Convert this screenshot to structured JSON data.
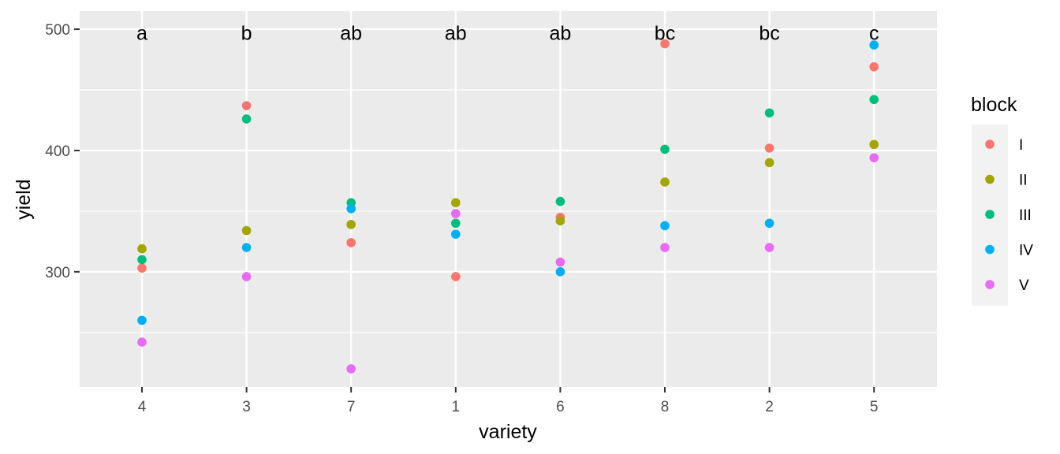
{
  "chart_data": {
    "type": "scatter",
    "xlabel": "variety",
    "ylabel": "yield",
    "categories": [
      "4",
      "3",
      "7",
      "1",
      "6",
      "8",
      "2",
      "5"
    ],
    "ylim": [
      205,
      515
    ],
    "yticks": [
      300,
      400,
      500
    ],
    "grid": true,
    "legend": {
      "title": "block",
      "position": "right",
      "entries": [
        "I",
        "II",
        "III",
        "IV",
        "V"
      ]
    },
    "group_letters": [
      "a",
      "b",
      "ab",
      "ab",
      "ab",
      "bc",
      "bc",
      "c"
    ],
    "letters_y": 497,
    "series": [
      {
        "name": "I",
        "color": "#F8766D",
        "values": [
          303,
          437,
          324,
          296,
          345,
          488,
          402,
          469
        ]
      },
      {
        "name": "II",
        "color": "#A3A500",
        "values": [
          319,
          334,
          339,
          357,
          342,
          374,
          390,
          405
        ]
      },
      {
        "name": "III",
        "color": "#00BF7D",
        "values": [
          310,
          426,
          357,
          340,
          358,
          401,
          431,
          442
        ]
      },
      {
        "name": "IV",
        "color": "#00B0F6",
        "values": [
          260,
          320,
          352,
          331,
          300,
          338,
          340,
          487
        ]
      },
      {
        "name": "V",
        "color": "#E76BF3",
        "values": [
          242,
          296,
          220,
          348,
          308,
          320,
          320,
          394
        ]
      }
    ]
  }
}
